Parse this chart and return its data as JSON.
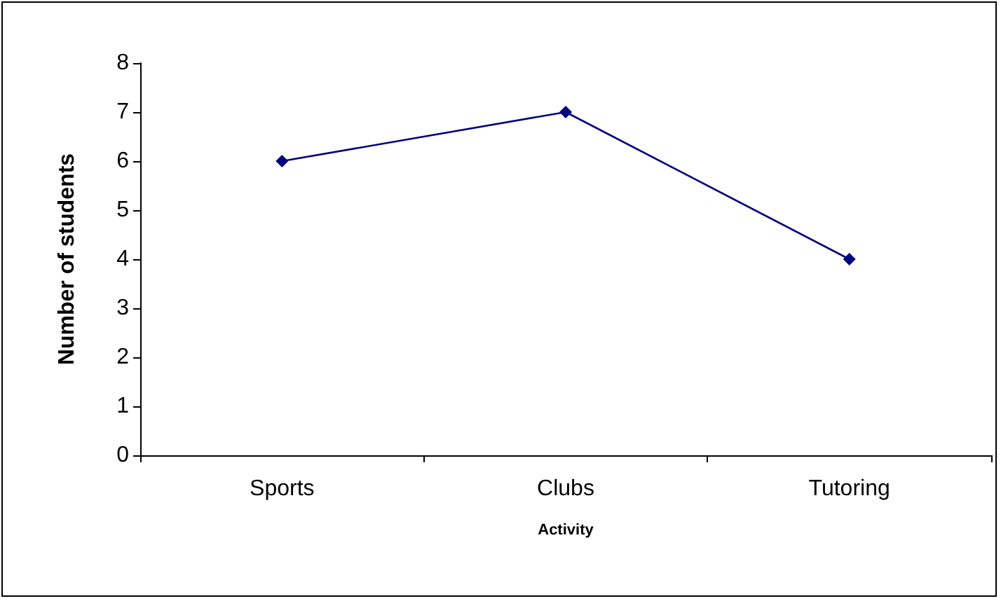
{
  "chart_data": {
    "type": "line",
    "xlabel": "Activity",
    "ylabel": "Number of students",
    "categories": [
      "Sports",
      "Clubs",
      "Tutoring"
    ],
    "series": [
      {
        "color": "#000080",
        "values": [
          6,
          7,
          4
        ]
      }
    ],
    "ylim": [
      0,
      8
    ],
    "yticks": [
      0,
      1,
      2,
      3,
      4,
      5,
      6,
      7,
      8
    ],
    "marker": "diamond",
    "line_style": "solid"
  }
}
